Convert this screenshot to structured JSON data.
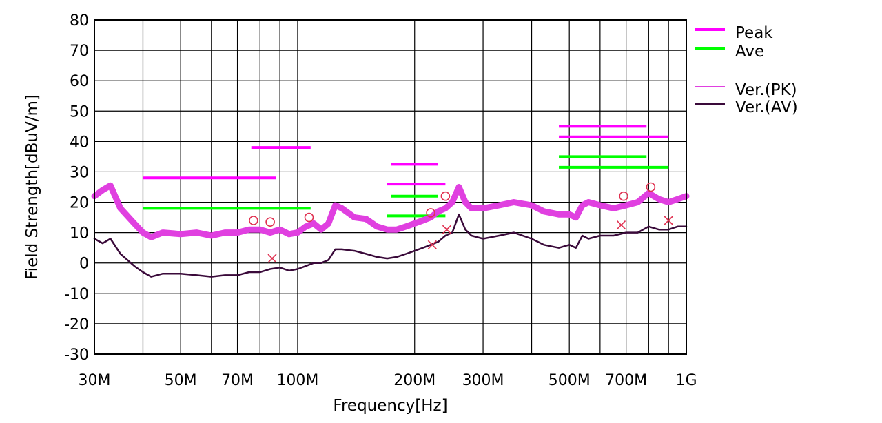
{
  "chart_data": {
    "type": "line",
    "xlabel": "Frequency[Hz]",
    "ylabel": "Field Strength[dBuV/m]",
    "x_scale": "log",
    "xlim": [
      30000000,
      1000000000
    ],
    "ylim": [
      -30,
      80
    ],
    "grid": true,
    "legend_position": "right",
    "x_ticks": [
      {
        "value": 30000000,
        "label": "30M"
      },
      {
        "value": 50000000,
        "label": "50M"
      },
      {
        "value": 70000000,
        "label": "70M"
      },
      {
        "value": 100000000,
        "label": "100M"
      },
      {
        "value": 200000000,
        "label": "200M"
      },
      {
        "value": 300000000,
        "label": "300M"
      },
      {
        "value": 500000000,
        "label": "500M"
      },
      {
        "value": 700000000,
        "label": "700M"
      },
      {
        "value": 1000000000,
        "label": "1G"
      }
    ],
    "x_minor_gridlines": [
      40000000,
      60000000,
      80000000,
      90000000,
      400000000,
      600000000,
      800000000,
      900000000
    ],
    "y_ticks": [
      80,
      70,
      60,
      50,
      40,
      30,
      20,
      10,
      0,
      -10,
      -20,
      -30
    ],
    "legend": [
      {
        "label": "Peak",
        "color": "#ff00ff"
      },
      {
        "label": "Ave",
        "color": "#00ff00"
      },
      {
        "label": "Ver.(PK)",
        "color": "#e040e0"
      },
      {
        "label": "Ver.(AV)",
        "color": "#3a0a3a"
      }
    ],
    "limit_lines": {
      "peak": [
        {
          "x": [
            40000000,
            88000000
          ],
          "y": 28
        },
        {
          "x": [
            76000000,
            108000000
          ],
          "y": 38
        },
        {
          "x": [
            174000000,
            230000000
          ],
          "y": 32.5
        },
        {
          "x": [
            170000000,
            240000000
          ],
          "y": 26
        },
        {
          "x": [
            470000000,
            790000000
          ],
          "y": 45
        },
        {
          "x": [
            470000000,
            900000000
          ],
          "y": 41.5
        }
      ],
      "ave": [
        {
          "x": [
            40000000,
            108000000
          ],
          "y": 18
        },
        {
          "x": [
            174000000,
            230000000
          ],
          "y": 22
        },
        {
          "x": [
            170000000,
            240000000
          ],
          "y": 15.5
        },
        {
          "x": [
            470000000,
            790000000
          ],
          "y": 35
        },
        {
          "x": [
            470000000,
            900000000
          ],
          "y": 31.5
        }
      ]
    },
    "series": [
      {
        "name": "Ver.(PK)",
        "color": "#e040e0",
        "points": [
          [
            30000000,
            22
          ],
          [
            31500000,
            24
          ],
          [
            33000000,
            25.5
          ],
          [
            35000000,
            18
          ],
          [
            38000000,
            13
          ],
          [
            40000000,
            10
          ],
          [
            42000000,
            8.5
          ],
          [
            45000000,
            10
          ],
          [
            50000000,
            9.5
          ],
          [
            55000000,
            10
          ],
          [
            60000000,
            9
          ],
          [
            65000000,
            10
          ],
          [
            70000000,
            10
          ],
          [
            75000000,
            11
          ],
          [
            80000000,
            11
          ],
          [
            85000000,
            10
          ],
          [
            90000000,
            11
          ],
          [
            95000000,
            9.5
          ],
          [
            100000000,
            10
          ],
          [
            105000000,
            12
          ],
          [
            110000000,
            13
          ],
          [
            115000000,
            11
          ],
          [
            120000000,
            13
          ],
          [
            125000000,
            19
          ],
          [
            130000000,
            18
          ],
          [
            140000000,
            15
          ],
          [
            150000000,
            14.5
          ],
          [
            160000000,
            12
          ],
          [
            170000000,
            11
          ],
          [
            180000000,
            11
          ],
          [
            190000000,
            12
          ],
          [
            200000000,
            13
          ],
          [
            210000000,
            14
          ],
          [
            220000000,
            15
          ],
          [
            230000000,
            17
          ],
          [
            240000000,
            18
          ],
          [
            250000000,
            20
          ],
          [
            260000000,
            25
          ],
          [
            270000000,
            20
          ],
          [
            280000000,
            18
          ],
          [
            300000000,
            18
          ],
          [
            330000000,
            19
          ],
          [
            360000000,
            20
          ],
          [
            400000000,
            19
          ],
          [
            430000000,
            17
          ],
          [
            470000000,
            16
          ],
          [
            500000000,
            16
          ],
          [
            520000000,
            15
          ],
          [
            540000000,
            19
          ],
          [
            560000000,
            20
          ],
          [
            600000000,
            19
          ],
          [
            650000000,
            18
          ],
          [
            700000000,
            19
          ],
          [
            750000000,
            20
          ],
          [
            800000000,
            23
          ],
          [
            850000000,
            21
          ],
          [
            900000000,
            20
          ],
          [
            950000000,
            21
          ],
          [
            1000000000,
            22
          ]
        ]
      },
      {
        "name": "Ver.(AV)",
        "color": "#3a0a3a",
        "points": [
          [
            30000000,
            8
          ],
          [
            31500000,
            6.5
          ],
          [
            33000000,
            8
          ],
          [
            35000000,
            3
          ],
          [
            38000000,
            -1
          ],
          [
            40000000,
            -3
          ],
          [
            42000000,
            -4.5
          ],
          [
            45000000,
            -3.5
          ],
          [
            50000000,
            -3.5
          ],
          [
            55000000,
            -4
          ],
          [
            60000000,
            -4.5
          ],
          [
            65000000,
            -4
          ],
          [
            70000000,
            -4
          ],
          [
            75000000,
            -3
          ],
          [
            80000000,
            -3
          ],
          [
            85000000,
            -2
          ],
          [
            90000000,
            -1.5
          ],
          [
            95000000,
            -2.5
          ],
          [
            100000000,
            -2
          ],
          [
            105000000,
            -1
          ],
          [
            110000000,
            0
          ],
          [
            115000000,
            0
          ],
          [
            120000000,
            1
          ],
          [
            125000000,
            4.5
          ],
          [
            130000000,
            4.5
          ],
          [
            140000000,
            4
          ],
          [
            150000000,
            3
          ],
          [
            160000000,
            2
          ],
          [
            170000000,
            1.5
          ],
          [
            180000000,
            2
          ],
          [
            190000000,
            3
          ],
          [
            200000000,
            4
          ],
          [
            210000000,
            5
          ],
          [
            220000000,
            6
          ],
          [
            230000000,
            7
          ],
          [
            240000000,
            9
          ],
          [
            250000000,
            10
          ],
          [
            260000000,
            16
          ],
          [
            270000000,
            11
          ],
          [
            280000000,
            9
          ],
          [
            300000000,
            8
          ],
          [
            330000000,
            9
          ],
          [
            360000000,
            10
          ],
          [
            400000000,
            8
          ],
          [
            430000000,
            6
          ],
          [
            470000000,
            5
          ],
          [
            500000000,
            6
          ],
          [
            520000000,
            5
          ],
          [
            540000000,
            9
          ],
          [
            560000000,
            8
          ],
          [
            600000000,
            9
          ],
          [
            650000000,
            9
          ],
          [
            700000000,
            10
          ],
          [
            750000000,
            10
          ],
          [
            800000000,
            12
          ],
          [
            850000000,
            11
          ],
          [
            900000000,
            11
          ],
          [
            950000000,
            12
          ],
          [
            1000000000,
            12
          ]
        ]
      }
    ],
    "peak_markers": [
      {
        "x": 77000000,
        "y": 14
      },
      {
        "x": 85000000,
        "y": 13.5
      },
      {
        "x": 107000000,
        "y": 15
      },
      {
        "x": 220000000,
        "y": 16.5
      },
      {
        "x": 240000000,
        "y": 22
      },
      {
        "x": 690000000,
        "y": 22
      },
      {
        "x": 810000000,
        "y": 25
      }
    ],
    "ave_markers": [
      {
        "x": 86000000,
        "y": 1.5
      },
      {
        "x": 222000000,
        "y": 6
      },
      {
        "x": 242000000,
        "y": 11
      },
      {
        "x": 680000000,
        "y": 12.5
      },
      {
        "x": 900000000,
        "y": 14
      }
    ]
  }
}
